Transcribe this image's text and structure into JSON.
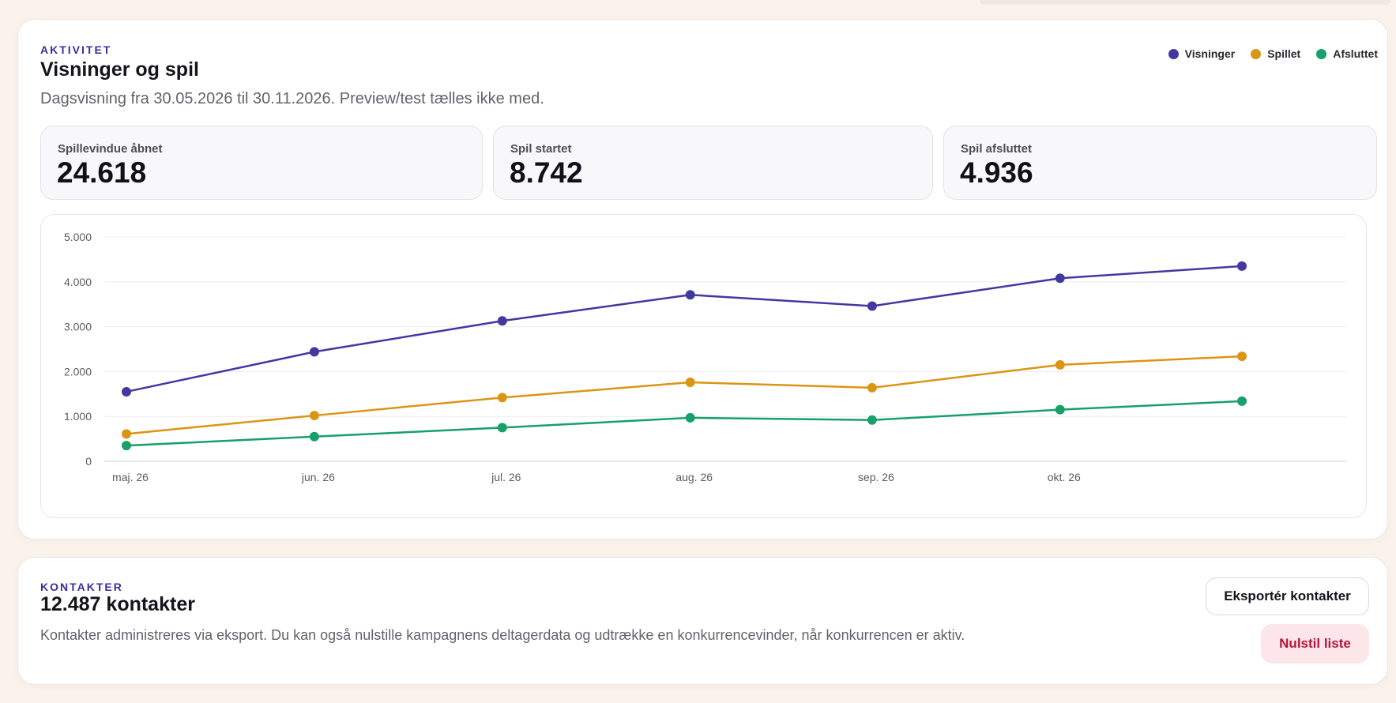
{
  "activity": {
    "eyebrow": "AKTIVITET",
    "title": "Visninger og spil",
    "subtitle": "Dagsvisning fra 30.05.2026 til 30.11.2026. Preview/test tælles ikke med.",
    "legend": [
      {
        "label": "Visninger",
        "color": "#4338a0"
      },
      {
        "label": "Spillet",
        "color": "#db9514"
      },
      {
        "label": "Afsluttet",
        "color": "#17a06a"
      }
    ],
    "stats": [
      {
        "label": "Spillevindue åbnet",
        "value": "24.618"
      },
      {
        "label": "Spil startet",
        "value": "8.742"
      },
      {
        "label": "Spil afsluttet",
        "value": "4.936"
      }
    ]
  },
  "chart_data": {
    "type": "line",
    "x": [
      "2026-05-30",
      "2026-06-30",
      "2026-07-31",
      "2026-08-31",
      "2026-09-30",
      "2026-10-31",
      "2026-11-30"
    ],
    "x_tick_labels": [
      "maj. 26",
      "jun. 26",
      "jul. 26",
      "aug. 26",
      "sep. 26",
      "okt. 26"
    ],
    "y_tick_labels": [
      "5.000",
      "4.000",
      "3.000",
      "2.000",
      "1.000",
      "0"
    ],
    "ylim": [
      0,
      5000
    ],
    "grid": true,
    "legend_position": "top-right",
    "series": [
      {
        "name": "Visninger",
        "color": "#4338a0",
        "values": [
          1550,
          2440,
          3130,
          3710,
          3460,
          4080,
          4350
        ]
      },
      {
        "name": "Spillet",
        "color": "#db9514",
        "values": [
          610,
          1020,
          1420,
          1760,
          1640,
          2150,
          2340
        ]
      },
      {
        "name": "Afsluttet",
        "color": "#17a06a",
        "values": [
          350,
          550,
          750,
          970,
          920,
          1150,
          1340
        ]
      }
    ]
  },
  "contacts": {
    "eyebrow": "KONTAKTER",
    "title": "12.487 kontakter",
    "description": "Kontakter administreres via eksport. Du kan også nulstille kampagnens deltagerdata og udtrække en konkurrencevinder, når konkurrencen er aktiv.",
    "export_label": "Eksportér kontakter",
    "reset_label": "Nulstil liste"
  }
}
